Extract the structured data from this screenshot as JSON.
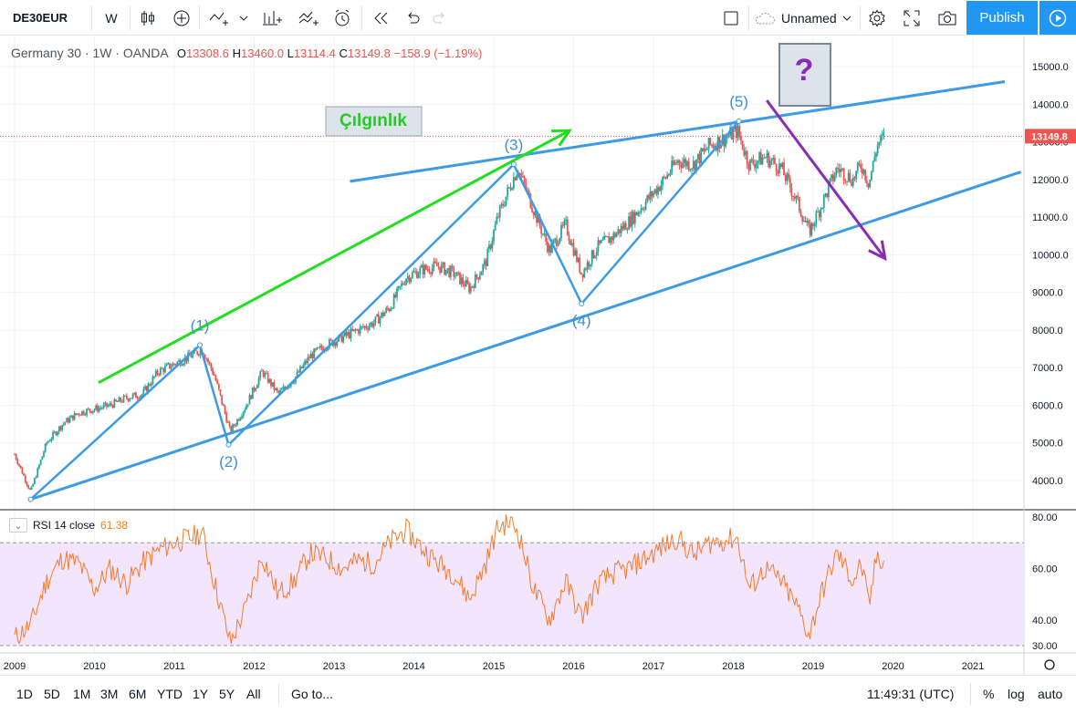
{
  "toolbar": {
    "symbol": "DE30EUR",
    "interval": "W",
    "layout_name": "Unnamed",
    "publish_label": "Publish"
  },
  "legend": {
    "name": "Germany 30 · 1W · OANDA",
    "o_label": "O",
    "o": "13308.6",
    "h_label": "H",
    "h": "13460.0",
    "l_label": "L",
    "l": "13114.4",
    "c_label": "C",
    "c": "13149.8",
    "change": "−158.9 (−1.19%)"
  },
  "rsi_legend": {
    "label": "RSI 14 close",
    "value": "61.38"
  },
  "annotations": {
    "crazy_label": "Çılgınlık",
    "question": "?",
    "wave1": "(1)",
    "wave2": "(2)",
    "wave3": "(3)",
    "wave4": "(4)",
    "wave5": "(5)"
  },
  "last_price_label": "13149.8",
  "colors": {
    "up": "#26a69a",
    "down": "#ef5350",
    "trendline": "#3d9ae6",
    "green_arrow": "#22dd22",
    "purple_arrow": "#8a2bb6",
    "rsi_line": "#f57c2c",
    "rsi_band": "#f3e5fc"
  },
  "bottombar": {
    "ranges": [
      "1D",
      "5D",
      "1M",
      "3M",
      "6M",
      "YTD",
      "1Y",
      "5Y",
      "All"
    ],
    "goto": "Go to...",
    "clock": "11:49:31 (UTC)",
    "percent": "%",
    "log": "log",
    "auto": "auto"
  },
  "chart_data": {
    "type": "line",
    "title": "Germany 30 · 1W · OANDA",
    "x_ticks": [
      "2009",
      "2010",
      "2011",
      "2012",
      "2013",
      "2014",
      "2015",
      "2016",
      "2017",
      "2018",
      "2019",
      "2020",
      "2021"
    ],
    "y_ticks": [
      "4000.0",
      "5000.0",
      "6000.0",
      "7000.0",
      "8000.0",
      "9000.0",
      "10000.0",
      "11000.0",
      "12000.0",
      "13000.0",
      "14000.0",
      "15000.0"
    ],
    "ylim": [
      3200,
      15400
    ],
    "rsi_ticks": [
      "30.00",
      "40.00",
      "60.00",
      "80.00"
    ],
    "rsi_ylim": [
      28,
      82
    ],
    "series": [
      {
        "name": "Germany 30",
        "x": [
          2009.0,
          2009.2,
          2009.4,
          2009.6,
          2009.8,
          2010.0,
          2010.2,
          2010.4,
          2010.6,
          2010.8,
          2011.0,
          2011.2,
          2011.35,
          2011.5,
          2011.7,
          2011.9,
          2012.1,
          2012.3,
          2012.5,
          2012.7,
          2012.9,
          2013.1,
          2013.3,
          2013.5,
          2013.7,
          2013.9,
          2014.1,
          2014.3,
          2014.5,
          2014.7,
          2014.9,
          2015.05,
          2015.2,
          2015.3,
          2015.5,
          2015.7,
          2015.9,
          2016.1,
          2016.3,
          2016.5,
          2016.7,
          2016.9,
          2017.1,
          2017.3,
          2017.5,
          2017.7,
          2017.9,
          2018.05,
          2018.2,
          2018.4,
          2018.6,
          2018.8,
          2018.95,
          2019.1,
          2019.3,
          2019.5,
          2019.6,
          2019.7,
          2019.8,
          2019.9
        ],
        "values": [
          4700,
          3700,
          5000,
          5500,
          5800,
          5900,
          6000,
          6200,
          6300,
          6900,
          7100,
          7300,
          7500,
          6800,
          5300,
          6000,
          6900,
          6300,
          6700,
          7300,
          7600,
          7800,
          8000,
          8200,
          8600,
          9400,
          9600,
          9700,
          9500,
          9100,
          9800,
          11000,
          11800,
          12300,
          11200,
          10100,
          10800,
          9500,
          10200,
          10500,
          10900,
          11400,
          11900,
          12500,
          12400,
          12900,
          13100,
          13300,
          12400,
          12600,
          12300,
          11400,
          10600,
          11300,
          12300,
          12000,
          12400,
          11900,
          12900,
          13150
        ]
      },
      {
        "name": "RSI 14 close",
        "x": [
          2009.0,
          2009.2,
          2009.4,
          2009.6,
          2009.8,
          2010.0,
          2010.2,
          2010.4,
          2010.6,
          2010.8,
          2011.0,
          2011.2,
          2011.35,
          2011.5,
          2011.7,
          2011.9,
          2012.1,
          2012.3,
          2012.5,
          2012.7,
          2012.9,
          2013.1,
          2013.3,
          2013.5,
          2013.7,
          2013.9,
          2014.1,
          2014.3,
          2014.5,
          2014.7,
          2014.9,
          2015.05,
          2015.2,
          2015.3,
          2015.5,
          2015.7,
          2015.9,
          2016.1,
          2016.3,
          2016.5,
          2016.7,
          2016.9,
          2017.1,
          2017.3,
          2017.5,
          2017.7,
          2017.9,
          2018.05,
          2018.2,
          2018.4,
          2018.6,
          2018.8,
          2018.95,
          2019.1,
          2019.3,
          2019.5,
          2019.6,
          2019.7,
          2019.8,
          2019.9
        ],
        "values": [
          33,
          38,
          55,
          64,
          62,
          52,
          60,
          54,
          62,
          67,
          70,
          72,
          74,
          55,
          31,
          45,
          65,
          50,
          55,
          66,
          64,
          60,
          63,
          62,
          70,
          75,
          68,
          62,
          58,
          48,
          62,
          76,
          78,
          75,
          52,
          40,
          55,
          41,
          54,
          58,
          60,
          64,
          68,
          72,
          65,
          70,
          71,
          72,
          52,
          60,
          55,
          45,
          34,
          50,
          66,
          55,
          62,
          45,
          66,
          61.38
        ]
      }
    ],
    "trendlines": [
      {
        "name": "lower-channel",
        "from": [
          2009.2,
          3500
        ],
        "to": [
          2021.6,
          12200
        ]
      },
      {
        "name": "upper-channel",
        "from": [
          2013.2,
          11950
        ],
        "to": [
          2021.4,
          14600
        ]
      },
      {
        "name": "green-arrow",
        "from": [
          2010.05,
          6600
        ],
        "to": [
          2015.95,
          13300
        ]
      },
      {
        "name": "purple-arrow",
        "from": [
          2018.42,
          14100
        ],
        "to": [
          2019.9,
          9900
        ]
      }
    ],
    "waves": [
      {
        "label": "(1)",
        "x": 2011.32,
        "y": 7600
      },
      {
        "label": "(2)",
        "x": 2011.68,
        "y": 4950
      },
      {
        "label": "(3)",
        "x": 2015.25,
        "y": 12400
      },
      {
        "label": "(4)",
        "x": 2016.1,
        "y": 8700
      },
      {
        "label": "(5)",
        "x": 2018.07,
        "y": 13550
      }
    ],
    "last_price": 13149.8
  }
}
